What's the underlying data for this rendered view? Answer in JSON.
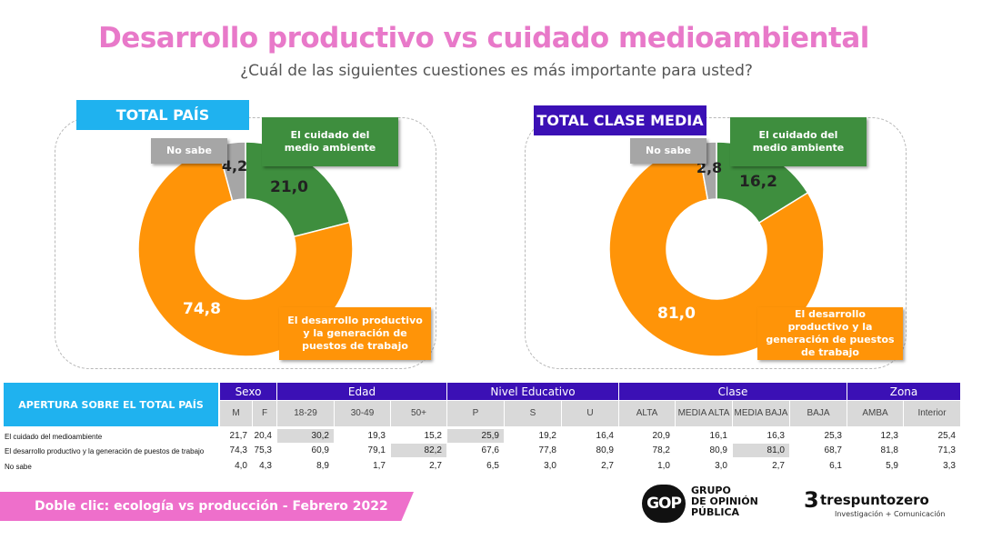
{
  "title": "Desarrollo productivo vs cuidado medioambiental",
  "subtitle": "¿Cuál de las siguientes cuestiones es más importante para usted?",
  "colors": {
    "green": "#3e8e3e",
    "orange": "#ff9408",
    "grey": "#a6a6a6",
    "cyan": "#1fb2ef",
    "purple": "#3b10b5",
    "pink": "#ee6fcb"
  },
  "legend_labels": {
    "medio": "El cuidado del medio ambiente",
    "desarrollo": "El desarrollo productivo y la generación de puestos de trabajo",
    "nosabe": "No sabe"
  },
  "chart_data": [
    {
      "type": "pie",
      "title": "TOTAL PAÍS",
      "slices": [
        {
          "name": "El cuidado del medio ambiente",
          "value": 21.0,
          "label": "21,0",
          "color": "#3e8e3e"
        },
        {
          "name": "El desarrollo productivo y la generación de puestos de trabajo",
          "value": 74.8,
          "label": "74,8",
          "color": "#ff9408"
        },
        {
          "name": "No sabe",
          "value": 4.2,
          "label": "4,2",
          "color": "#a6a6a6"
        }
      ]
    },
    {
      "type": "pie",
      "title": "TOTAL CLASE MEDIA",
      "slices": [
        {
          "name": "El cuidado del medio ambiente",
          "value": 16.2,
          "label": "16,2",
          "color": "#3e8e3e"
        },
        {
          "name": "El desarrollo productivo y la generación de puestos de trabajo",
          "value": 81.0,
          "label": "81,0",
          "color": "#ff9408"
        },
        {
          "name": "No sabe",
          "value": 2.8,
          "label": "2,8",
          "color": "#a6a6a6"
        }
      ]
    }
  ],
  "table": {
    "header": "APERTURA SOBRE EL TOTAL PAÍS",
    "groups": [
      "Sexo",
      "Edad",
      "Nivel Educativo",
      "Clase",
      "Zona"
    ],
    "columns": [
      "M",
      "F",
      "18-29",
      "30-49",
      "50+",
      "P",
      "S",
      "U",
      "ALTA",
      "MEDIA ALTA",
      "MEDIA BAJA",
      "BAJA",
      "AMBA",
      "Interior"
    ],
    "rows": [
      {
        "label": "El cuidado del medioambiente",
        "values": [
          "21,7",
          "20,4",
          "30,2",
          "19,3",
          "15,2",
          "25,9",
          "19,2",
          "16,4",
          "20,9",
          "16,1",
          "16,3",
          "25,3",
          "12,3",
          "25,4"
        ]
      },
      {
        "label": "El desarrollo productivo y la generación de puestos de trabajo",
        "values": [
          "74,3",
          "75,3",
          "60,9",
          "79,1",
          "82,2",
          "67,6",
          "77,8",
          "80,9",
          "78,2",
          "80,9",
          "81,0",
          "68,7",
          "81,8",
          "71,3"
        ]
      },
      {
        "label": "No sabe",
        "values": [
          "4,0",
          "4,3",
          "8,9",
          "1,7",
          "2,7",
          "6,5",
          "3,0",
          "2,7",
          "1,0",
          "3,0",
          "2,7",
          "6,1",
          "5,9",
          "3,3"
        ]
      }
    ],
    "highlighted": [
      [
        0,
        2
      ],
      [
        0,
        5
      ],
      [
        1,
        4
      ],
      [
        1,
        10
      ]
    ]
  },
  "footer": "Doble clic: ecología vs producción - Febrero 2022",
  "logos": {
    "gop_mark": "GOP",
    "gop_line1": "GRUPO",
    "gop_line2": "DE OPINIÓN",
    "gop_line3": "PÚBLICA",
    "tres_mark": "3",
    "tres_name": "trespuntozero",
    "tres_tagline": "Investigación + Comunicación"
  }
}
